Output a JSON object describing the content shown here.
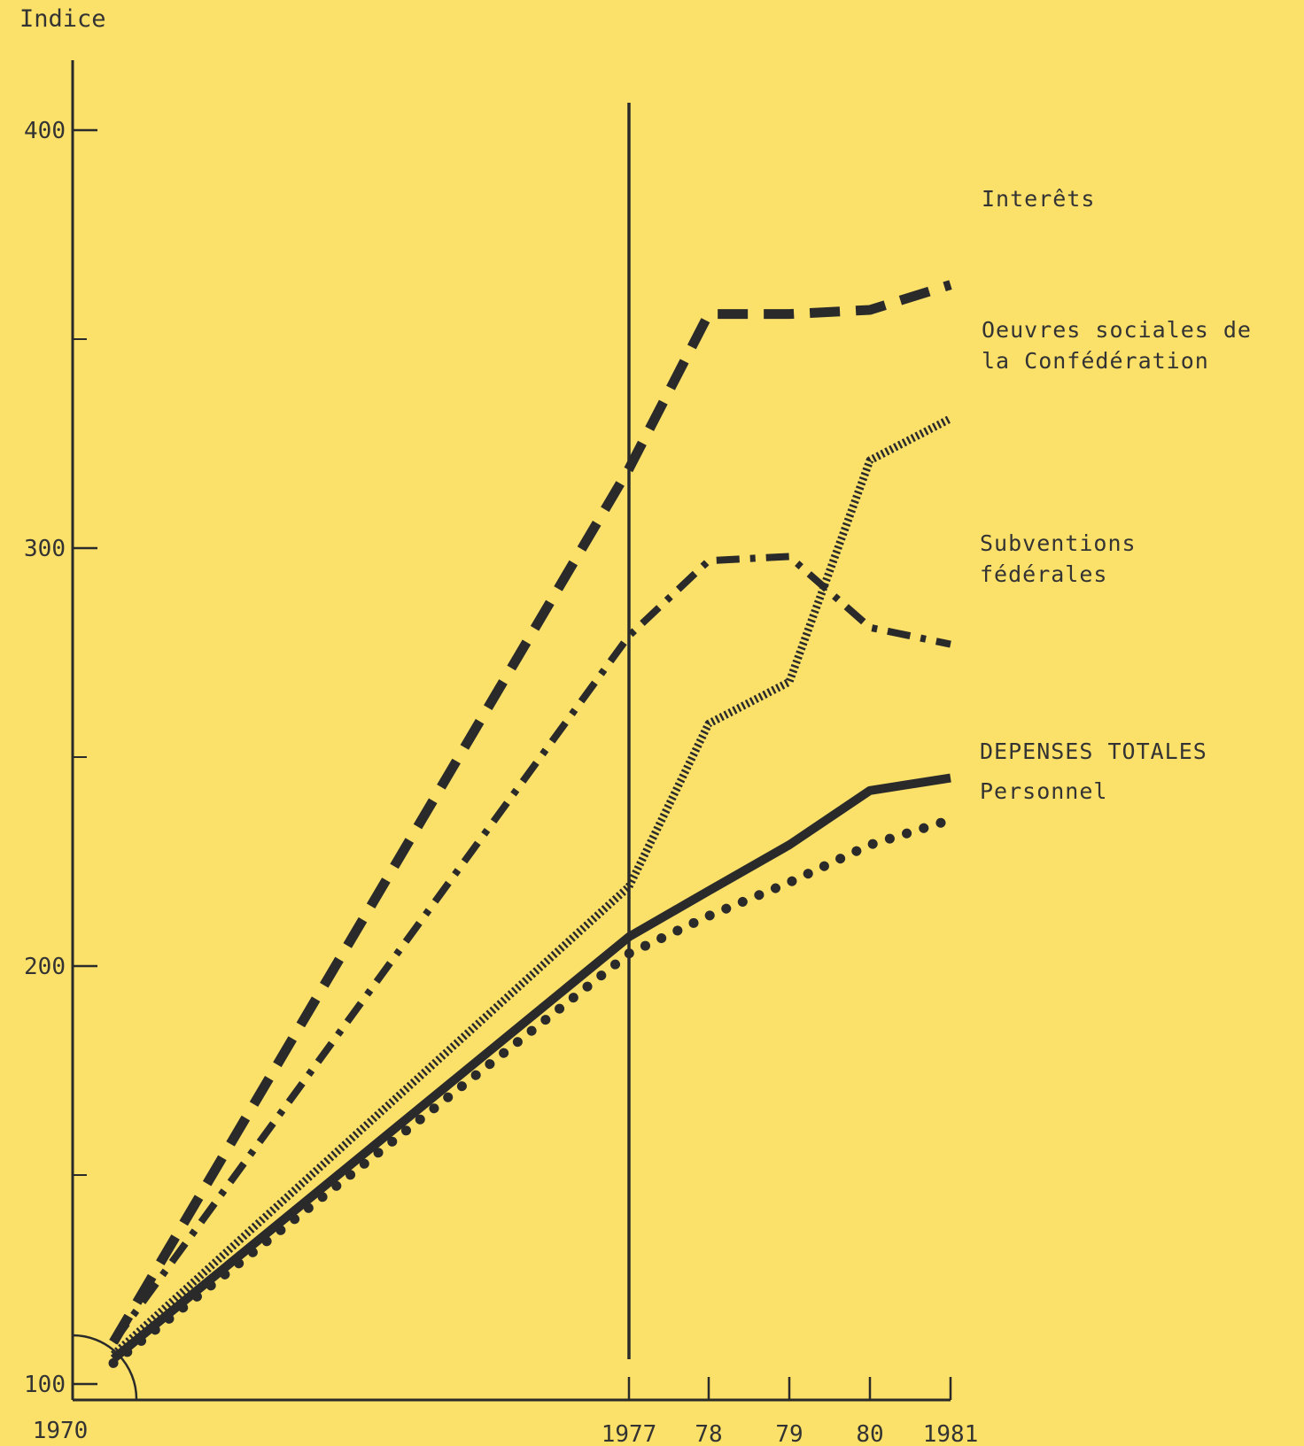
{
  "chart_data": {
    "type": "line",
    "ylabel": "Indice",
    "ylim": [
      100,
      400
    ],
    "y_major_ticks": [
      "100",
      "200",
      "300",
      "400"
    ],
    "x_tick_labels": {
      "start": "1970",
      "ticks": [
        "1977",
        "78",
        "79",
        "80",
        "1981"
      ]
    },
    "x": [
      1970,
      1977,
      1978,
      1979,
      1980,
      1981
    ],
    "reference_line_x": 1977,
    "series": [
      {
        "name": "Interêts",
        "style": "dashed-thick",
        "values": [
          110,
          319,
          356,
          356,
          357,
          363
        ]
      },
      {
        "name": "Oeuvres sociales de la Confédération",
        "style": "dotted-dense",
        "values": [
          107,
          219,
          258,
          268,
          321,
          331
        ]
      },
      {
        "name": "Subventions fédérales",
        "style": "dash-dot",
        "values": [
          110,
          279,
          297,
          298,
          281,
          277
        ]
      },
      {
        "name": "DEPENSES TOTALES",
        "style": "solid-thick",
        "values": [
          106,
          207,
          218,
          229,
          242,
          245
        ]
      },
      {
        "name": "Personnel",
        "style": "dotted-round",
        "values": [
          105,
          203,
          212,
          220,
          229,
          235
        ]
      }
    ],
    "labels": {
      "s0": [
        "Interêts"
      ],
      "s1": [
        "Oeuvres sociales de",
        "la Confédération"
      ],
      "s2": [
        "Subventions",
        "fédérales"
      ],
      "s3": [
        "DEPENSES TOTALES"
      ],
      "s4": [
        "Personnel"
      ]
    },
    "line_color": "#2a2a2a",
    "background": "#fbe06a"
  }
}
